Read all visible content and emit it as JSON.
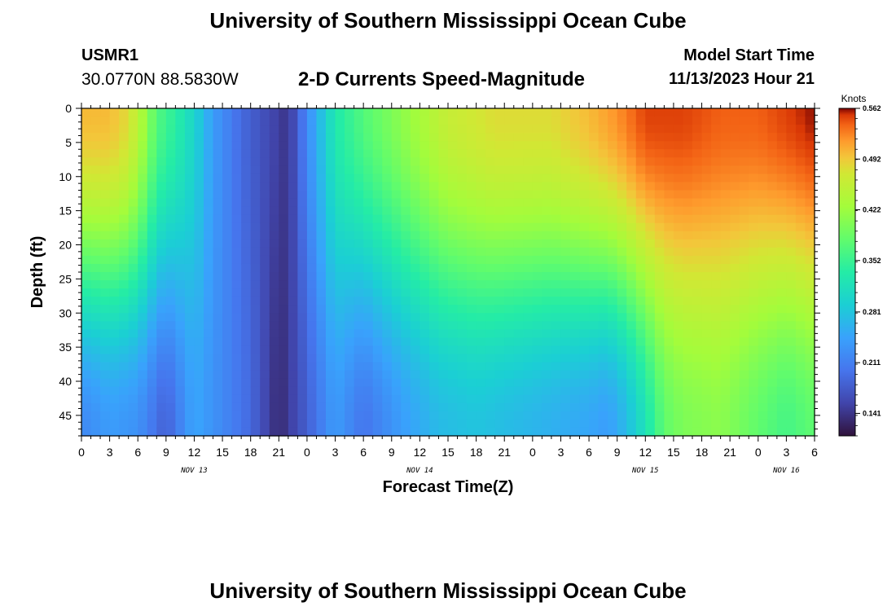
{
  "header": {
    "title": "University of Southern Mississippi Ocean Cube",
    "station": "USMR1",
    "coords": "30.0770N  88.5830W",
    "subtitle": "2-D Currents Speed-Magnitude",
    "model_start_label": "Model Start Time",
    "model_start_value": "11/13/2023 Hour 21"
  },
  "footer": {
    "title": "University of Southern Mississippi Ocean Cube"
  },
  "chart_data": {
    "type": "heatmap",
    "title": "2-D Currents Speed-Magnitude",
    "xlabel": "Forecast Time(Z)",
    "ylabel": "Depth (ft)",
    "xlim": [
      0,
      78
    ],
    "ylim": [
      0,
      48
    ],
    "x_ticks": [
      0,
      3,
      6,
      9,
      12,
      15,
      18,
      21,
      24,
      27,
      30,
      33,
      36,
      39,
      42,
      45,
      48,
      51,
      54,
      57,
      60,
      63,
      66,
      69,
      72,
      75,
      78
    ],
    "x_tick_labels": [
      "0",
      "3",
      "6",
      "9",
      "12",
      "15",
      "18",
      "21",
      "0",
      "3",
      "6",
      "9",
      "12",
      "15",
      "18",
      "21",
      "0",
      "3",
      "6",
      "9",
      "12",
      "15",
      "18",
      "21",
      "0",
      "3",
      "6"
    ],
    "y_ticks": [
      0,
      5,
      10,
      15,
      20,
      25,
      30,
      35,
      40,
      45
    ],
    "y_tick_labels": [
      "0",
      "5",
      "10",
      "15",
      "20",
      "25",
      "30",
      "35",
      "40",
      "45"
    ],
    "date_labels": [
      {
        "text": "NOV 13",
        "x": 12
      },
      {
        "text": "NOV 14",
        "x": 36
      },
      {
        "text": "NOV 15",
        "x": 60
      },
      {
        "text": "NOV 16",
        "x": 75
      }
    ],
    "colorbar": {
      "unit": "Knots",
      "min": 0.11,
      "max": 0.562,
      "ticks": [
        0.141,
        0.211,
        0.281,
        0.352,
        0.422,
        0.492,
        0.562
      ],
      "tick_labels": [
        "0.141",
        "0.211",
        "0.281",
        "0.352",
        "0.422",
        "0.492",
        "0.562"
      ]
    },
    "speed_by_time_surface_knots": [
      {
        "x": 0,
        "v": 0.5
      },
      {
        "x": 3,
        "v": 0.5
      },
      {
        "x": 5,
        "v": 0.48
      },
      {
        "x": 6.5,
        "v": 0.43
      },
      {
        "x": 8,
        "v": 0.37
      },
      {
        "x": 10,
        "v": 0.34
      },
      {
        "x": 12,
        "v": 0.3
      },
      {
        "x": 14,
        "v": 0.24
      },
      {
        "x": 17,
        "v": 0.19
      },
      {
        "x": 20,
        "v": 0.16
      },
      {
        "x": 22,
        "v": 0.14
      },
      {
        "x": 24,
        "v": 0.22
      },
      {
        "x": 27,
        "v": 0.33
      },
      {
        "x": 30,
        "v": 0.37
      },
      {
        "x": 33,
        "v": 0.4
      },
      {
        "x": 36,
        "v": 0.43
      },
      {
        "x": 39,
        "v": 0.46
      },
      {
        "x": 44,
        "v": 0.48
      },
      {
        "x": 50,
        "v": 0.48
      },
      {
        "x": 54,
        "v": 0.5
      },
      {
        "x": 57,
        "v": 0.52
      },
      {
        "x": 60,
        "v": 0.55
      },
      {
        "x": 64,
        "v": 0.55
      },
      {
        "x": 68,
        "v": 0.54
      },
      {
        "x": 72,
        "v": 0.54
      },
      {
        "x": 75,
        "v": 0.55
      },
      {
        "x": 78,
        "v": 0.56
      }
    ],
    "speed_by_time_bottom_knots": [
      {
        "x": 0,
        "v": 0.22
      },
      {
        "x": 3,
        "v": 0.24
      },
      {
        "x": 6,
        "v": 0.23
      },
      {
        "x": 9,
        "v": 0.18
      },
      {
        "x": 12,
        "v": 0.25
      },
      {
        "x": 15,
        "v": 0.22
      },
      {
        "x": 18,
        "v": 0.19
      },
      {
        "x": 21,
        "v": 0.13
      },
      {
        "x": 24,
        "v": 0.18
      },
      {
        "x": 27,
        "v": 0.24
      },
      {
        "x": 30,
        "v": 0.2
      },
      {
        "x": 34,
        "v": 0.24
      },
      {
        "x": 38,
        "v": 0.27
      },
      {
        "x": 42,
        "v": 0.28
      },
      {
        "x": 46,
        "v": 0.27
      },
      {
        "x": 50,
        "v": 0.26
      },
      {
        "x": 54,
        "v": 0.25
      },
      {
        "x": 56,
        "v": 0.24
      },
      {
        "x": 58,
        "v": 0.27
      },
      {
        "x": 60,
        "v": 0.32
      },
      {
        "x": 62,
        "v": 0.38
      },
      {
        "x": 64,
        "v": 0.4
      },
      {
        "x": 68,
        "v": 0.41
      },
      {
        "x": 72,
        "v": 0.38
      },
      {
        "x": 75,
        "v": 0.36
      },
      {
        "x": 78,
        "v": 0.38
      }
    ]
  }
}
